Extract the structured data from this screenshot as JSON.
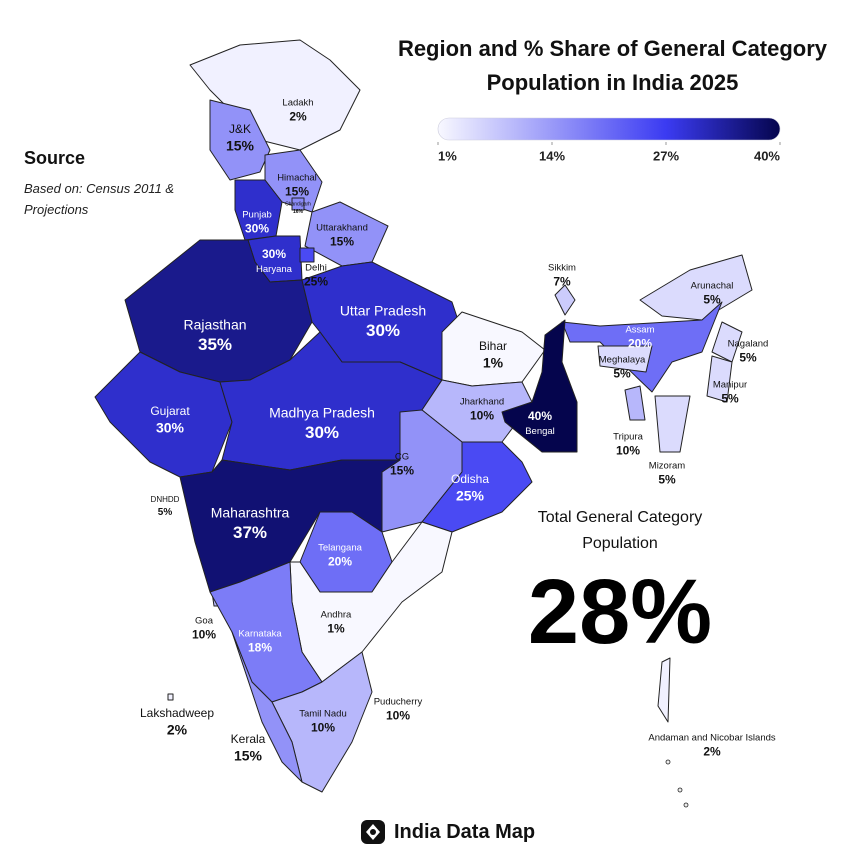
{
  "title": "Region and % Share of General Category Population in India 2025",
  "source": {
    "heading": "Source",
    "text": "Based on: Census 2011 & Projections"
  },
  "legend": {
    "color_stops": [
      {
        "value": 1,
        "color": "#f8f8ff"
      },
      {
        "value": 27,
        "color": "#3b3bf2"
      },
      {
        "value": 40,
        "color": "#05054d"
      }
    ],
    "ticks": [
      {
        "value": 1,
        "label": "1%"
      },
      {
        "value": 14,
        "label": "14%"
      },
      {
        "value": 27,
        "label": "27%"
      },
      {
        "value": 40,
        "label": "40%"
      }
    ]
  },
  "regions": [
    {
      "name": "Ladakh",
      "value": 2,
      "value_label": "2%"
    },
    {
      "name": "J&K",
      "value": 15,
      "value_label": "15%"
    },
    {
      "name": "Himachal",
      "value": 15,
      "value_label": "15%"
    },
    {
      "name": "Chandigarh",
      "value": 16,
      "value_label": "16%"
    },
    {
      "name": "Punjab",
      "value": 30,
      "value_label": "30%"
    },
    {
      "name": "Haryana",
      "value": 30,
      "value_label": "30%"
    },
    {
      "name": "Uttarakhand",
      "value": 15,
      "value_label": "15%"
    },
    {
      "name": "Delhi",
      "value": 25,
      "value_label": "25%"
    },
    {
      "name": "Rajasthan",
      "value": 35,
      "value_label": "35%"
    },
    {
      "name": "Uttar Pradesh",
      "value": 30,
      "value_label": "30%"
    },
    {
      "name": "Bihar",
      "value": 1,
      "value_label": "1%"
    },
    {
      "name": "Sikkim",
      "value": 7,
      "value_label": "7%"
    },
    {
      "name": "Arunachal",
      "value": 5,
      "value_label": "5%"
    },
    {
      "name": "Assam",
      "value": 20,
      "value_label": "20%"
    },
    {
      "name": "Meghalaya",
      "value": 5,
      "value_label": "5%"
    },
    {
      "name": "Nagaland",
      "value": 5,
      "value_label": "5%"
    },
    {
      "name": "Manipur",
      "value": 5,
      "value_label": "5%"
    },
    {
      "name": "Tripura",
      "value": 10,
      "value_label": "10%"
    },
    {
      "name": "Mizoram",
      "value": 5,
      "value_label": "5%"
    },
    {
      "name": "Gujarat",
      "value": 30,
      "value_label": "30%"
    },
    {
      "name": "Madhya Pradesh",
      "value": 30,
      "value_label": "30%"
    },
    {
      "name": "Jharkhand",
      "value": 10,
      "value_label": "10%"
    },
    {
      "name": "Bengal",
      "value": 40,
      "value_label": "40%"
    },
    {
      "name": "CG",
      "value": 15,
      "value_label": "15%"
    },
    {
      "name": "Odisha",
      "value": 25,
      "value_label": "25%"
    },
    {
      "name": "DNHDD",
      "value": 5,
      "value_label": "5%"
    },
    {
      "name": "Maharashtra",
      "value": 37,
      "value_label": "37%"
    },
    {
      "name": "Telangana",
      "value": 20,
      "value_label": "20%"
    },
    {
      "name": "Goa",
      "value": 10,
      "value_label": "10%"
    },
    {
      "name": "Andhra",
      "value": 1,
      "value_label": "1%"
    },
    {
      "name": "Karnataka",
      "value": 18,
      "value_label": "18%"
    },
    {
      "name": "Puducherry",
      "value": 10,
      "value_label": "10%"
    },
    {
      "name": "Lakshadweep",
      "value": 2,
      "value_label": "2%"
    },
    {
      "name": "Tamil Nadu",
      "value": 10,
      "value_label": "10%"
    },
    {
      "name": "Kerala",
      "value": 15,
      "value_label": "15%"
    },
    {
      "name": "Andaman and Nicobar Islands",
      "value": 2,
      "value_label": "2%"
    }
  ],
  "total": {
    "label": "Total General Category Population",
    "value": "28%"
  },
  "footer": "India Data Map"
}
